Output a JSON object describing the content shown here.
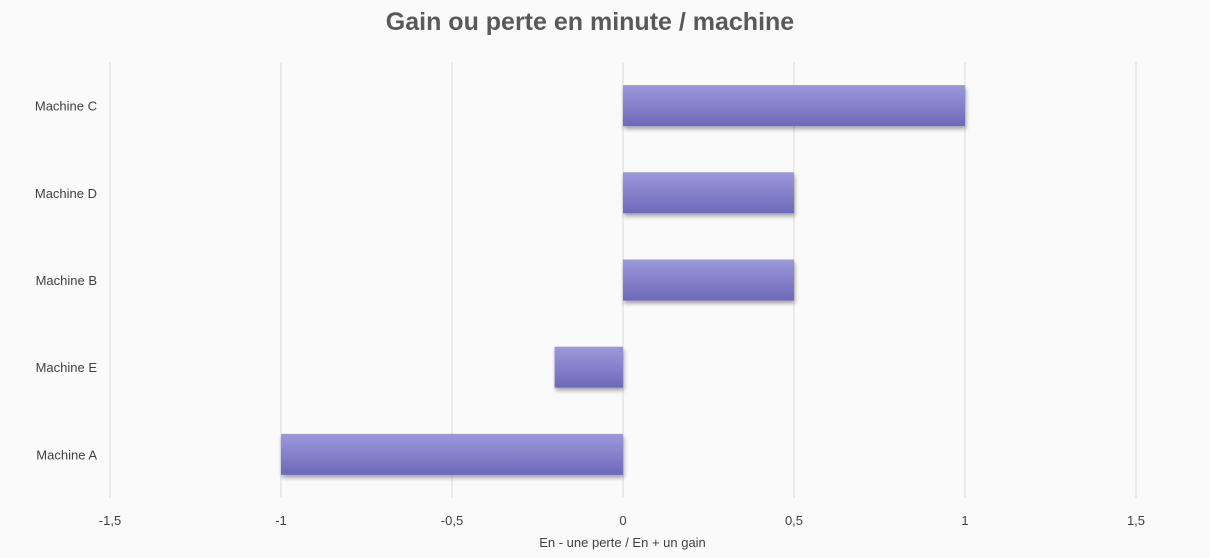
{
  "chart_data": {
    "type": "bar",
    "orientation": "horizontal",
    "title": "Gain ou perte en minute / machine",
    "xlabel": "En - une perte / En + un gain",
    "ylabel": "",
    "categories": [
      "Machine C",
      "Machine D",
      "Machine B",
      "Machine E",
      "Machine A"
    ],
    "values": [
      1,
      0.5,
      0.5,
      -0.2,
      -1
    ],
    "xlim": [
      -1.5,
      1.5
    ],
    "x_ticks": [
      -1.5,
      -1,
      -0.5,
      0,
      0.5,
      1,
      1.5
    ],
    "x_tick_labels": [
      "-1,5",
      "-1",
      "-0,5",
      "0",
      "0,5",
      "1",
      "1,5"
    ],
    "grid": true,
    "legend": "none",
    "colors": {
      "bar_top": "#9c98dd",
      "bar_bottom": "#6e69b8",
      "grid": "#d9d9d9",
      "text": "#404040",
      "title": "#595959"
    }
  }
}
